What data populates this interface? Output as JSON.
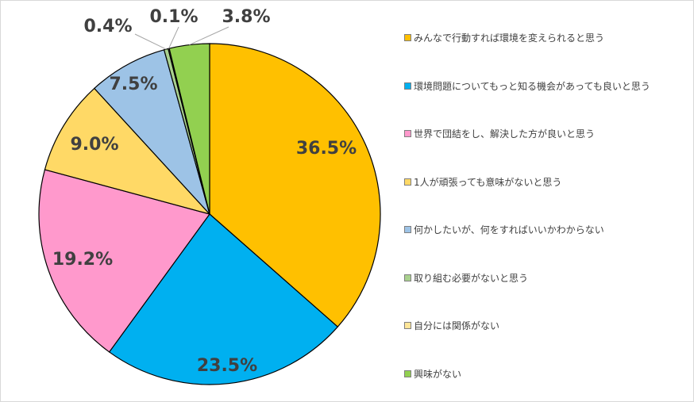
{
  "chart_data": {
    "type": "pie",
    "start": "12 o'clock, clockwise",
    "slices": [
      {
        "label": "みんなで行動すれば環境を変えられると思う",
        "value": 36.5,
        "value_label": "36.5%",
        "color": "#FFC000"
      },
      {
        "label": "環境問題についてもっと知る機会があっても良いと思う",
        "value": 23.5,
        "value_label": "23.5%",
        "color": "#00B0F0"
      },
      {
        "label": "世界で団結をし、解決した方が良いと思う",
        "value": 19.2,
        "value_label": "19.2%",
        "color": "#FF99CC"
      },
      {
        "label": "1人が頑張っても意味がないと思う",
        "value": 9.0,
        "value_label": "9.0%",
        "color": "#FFD966"
      },
      {
        "label": "何かしたいが、何をすればいいかわからない",
        "value": 7.5,
        "value_label": "7.5%",
        "color": "#9DC3E6"
      },
      {
        "label": "取り組む必要がないと思う",
        "value": 0.4,
        "value_label": "0.4%",
        "color": "#A9D18E"
      },
      {
        "label": "自分には関係がない",
        "value": 0.1,
        "value_label": "0.1%",
        "color": "#FFE699"
      },
      {
        "label": "興味がない",
        "value": 3.8,
        "value_label": "3.8%",
        "color": "#92D050"
      }
    ],
    "legend_position": "right",
    "slice_border_color": "#000000"
  }
}
